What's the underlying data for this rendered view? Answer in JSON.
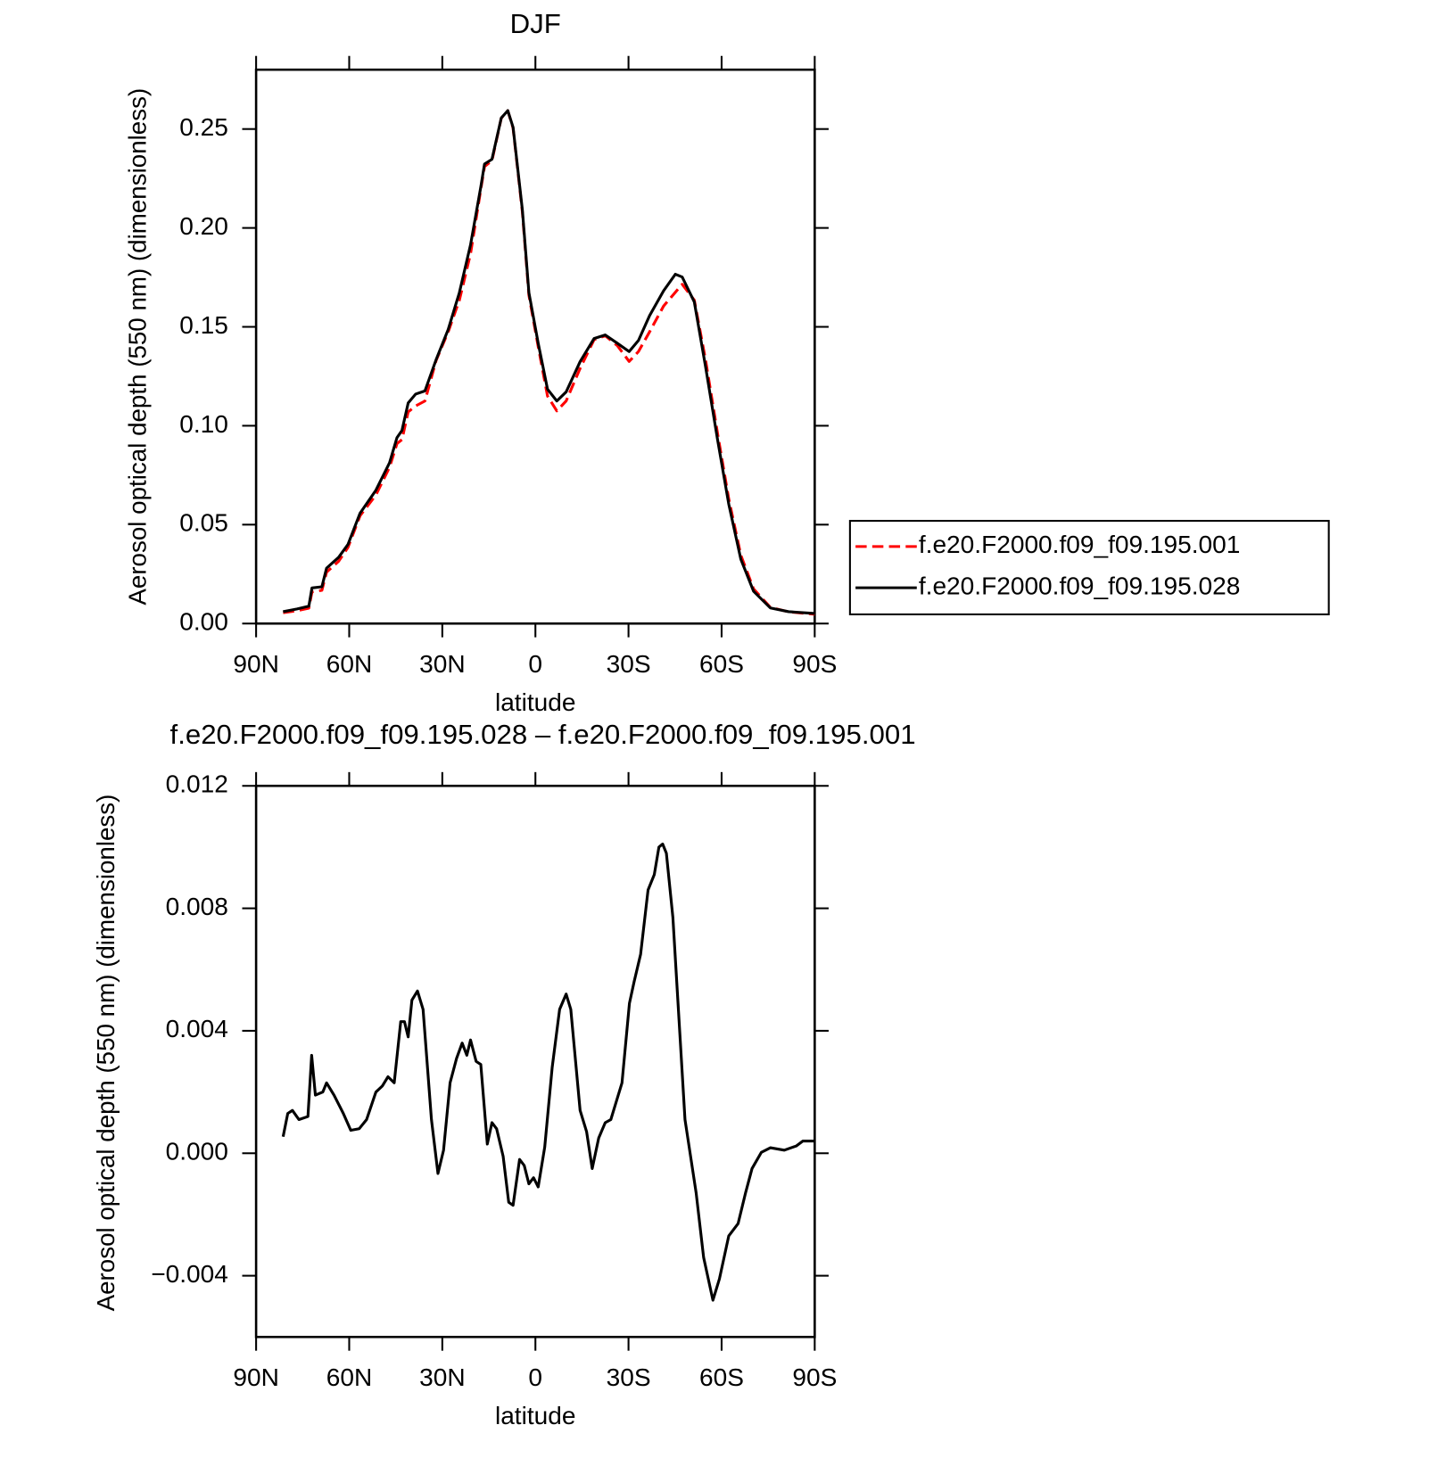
{
  "chart_data": [
    {
      "type": "line",
      "title": "DJF",
      "xlabel": "latitude",
      "ylabel": "Aerosol optical depth (550 nm) (dimensionless)",
      "xlim": [
        90,
        -90
      ],
      "ylim": [
        0,
        0.28
      ],
      "xticks": [
        {
          "value": 90,
          "label": "90N"
        },
        {
          "value": 60,
          "label": "60N"
        },
        {
          "value": 30,
          "label": "30N"
        },
        0,
        {
          "value": -30,
          "label": "30S"
        },
        {
          "value": -60,
          "label": "60S"
        },
        {
          "value": -90,
          "label": "90S"
        }
      ],
      "yticks": [
        {
          "value": 0,
          "label": "0.00"
        },
        0.05,
        {
          "value": 0.1,
          "label": "0.10"
        },
        0.15,
        {
          "value": 0.2,
          "label": "0.20"
        },
        0.25
      ],
      "legend": "right",
      "x": [
        81.3,
        76.8,
        73,
        72,
        68.8,
        67.3,
        63.4,
        60.4,
        56.5,
        51.4,
        47,
        44.6,
        43,
        41,
        38.6,
        35.6,
        32,
        28.1,
        24.5,
        20.9,
        17.6,
        16.4,
        14,
        11,
        8.9,
        7.2,
        4.2,
        2.1,
        -0.9,
        -3.9,
        -6.9,
        -9.9,
        -14.4,
        -18.9,
        -22.5,
        -26.4,
        -30.2,
        -33.2,
        -36.8,
        -41.3,
        -45.1,
        -47.3,
        -51.2,
        -54.8,
        -58.7,
        -62.3,
        -66.2,
        -70.3,
        -75.7,
        -81.6,
        -90
      ],
      "series": [
        {
          "name": "f.e20.F2000.f09_f09.195.001",
          "color": "#ff0000",
          "line_style": "dashed",
          "values": [
            0.0055,
            0.0065,
            0.0078,
            0.016,
            0.0168,
            0.026,
            0.0315,
            0.0385,
            0.0545,
            0.065,
            0.079,
            0.091,
            0.093,
            0.107,
            0.11,
            0.1125,
            0.133,
            0.1475,
            0.1635,
            0.187,
            0.2195,
            0.231,
            0.234,
            0.2555,
            0.2593,
            0.2505,
            0.208,
            0.166,
            0.14,
            0.115,
            0.1075,
            0.1125,
            0.129,
            0.1435,
            0.1455,
            0.1405,
            0.1325,
            0.1375,
            0.1475,
            0.1605,
            0.1675,
            0.1715,
            0.1635,
            0.1335,
            0.096,
            0.063,
            0.0345,
            0.0175,
            0.0082,
            0.0059,
            0.0047
          ]
        },
        {
          "name": "f.e20.F2000.f09_f09.195.028",
          "color": "#000000",
          "line_style": "solid",
          "values": [
            0.006,
            0.0074,
            0.0088,
            0.018,
            0.0186,
            0.028,
            0.0335,
            0.04,
            0.0558,
            0.0674,
            0.0813,
            0.094,
            0.0976,
            0.1115,
            0.116,
            0.1176,
            0.1334,
            0.1487,
            0.1673,
            0.1915,
            0.2207,
            0.2323,
            0.2347,
            0.2556,
            0.2593,
            0.2509,
            0.2091,
            0.1673,
            0.1417,
            0.1185,
            0.1125,
            0.1171,
            0.1324,
            0.1441,
            0.1459,
            0.1417,
            0.1375,
            0.1431,
            0.1557,
            0.1682,
            0.1766,
            0.1752,
            0.1626,
            0.1301,
            0.0929,
            0.0604,
            0.0325,
            0.0163,
            0.0079,
            0.006,
            0.0051
          ]
        }
      ]
    },
    {
      "type": "line",
      "title": "f.e20.F2000.f09_f09.195.028 – f.e20.F2000.f09_f09.195.001",
      "xlabel": "latitude",
      "ylabel": "Aerosol optical depth (550 nm) (dimensionless)",
      "xlim": [
        90,
        -90
      ],
      "ylim": [
        -0.006,
        0.012
      ],
      "xticks": [
        {
          "value": 90,
          "label": "90N"
        },
        {
          "value": 60,
          "label": "60N"
        },
        {
          "value": 30,
          "label": "30N"
        },
        0,
        {
          "value": -30,
          "label": "30S"
        },
        {
          "value": -60,
          "label": "60S"
        },
        {
          "value": -90,
          "label": "90S"
        }
      ],
      "yticks": [
        {
          "value": -0.004,
          "label": "−0.004"
        },
        {
          "value": 0,
          "label": "0.000"
        },
        0.004,
        0.008,
        0.012
      ],
      "color": "#000000",
      "x": [
        81.3,
        79.8,
        78.3,
        76.2,
        73.3,
        72.1,
        70.9,
        68.5,
        67.3,
        64.9,
        61.9,
        59.5,
        56.8,
        54.4,
        51.4,
        49.3,
        47.5,
        45.5,
        43.4,
        42.2,
        41,
        39.8,
        38,
        36.2,
        33.5,
        31.4,
        29.6,
        27.5,
        25.4,
        23.6,
        22.1,
        20.9,
        19.1,
        17.6,
        15.5,
        14,
        12.5,
        10.4,
        8.6,
        7.2,
        5.1,
        3.6,
        2.1,
        0.6,
        -0.9,
        -3,
        -5.4,
        -7.8,
        -9.9,
        -11.4,
        -14.4,
        -16.5,
        -18.3,
        -20.4,
        -22.5,
        -24.3,
        -25.8,
        -27.9,
        -30.3,
        -31.8,
        -33.9,
        -36.3,
        -38.3,
        -39.8,
        -41,
        -42.2,
        -44.3,
        -48.2,
        -51.8,
        -54.2,
        -55.7,
        -57.2,
        -59.3,
        -62.3,
        -65.3,
        -67.7,
        -69.8,
        -72.8,
        -75.7,
        -80.2,
        -84.1,
        -86.2,
        -90
      ],
      "values": [
        0.00054,
        0.0013,
        0.0014,
        0.0011,
        0.0012,
        0.0032,
        0.0019,
        0.002,
        0.0023,
        0.0019,
        0.0013,
        0.00075,
        0.0008,
        0.0011,
        0.002,
        0.0022,
        0.0025,
        0.0023,
        0.0043,
        0.0043,
        0.0038,
        0.005,
        0.0053,
        0.0047,
        0.0011,
        -0.00066,
        0.0001,
        0.0023,
        0.0031,
        0.0036,
        0.0032,
        0.0037,
        0.003,
        0.0029,
        0.0003,
        0.001,
        0.0008,
        -0.0001,
        -0.0016,
        -0.0017,
        -0.0002,
        -0.0004,
        -0.001,
        -0.0008,
        -0.0011,
        0.0002,
        0.0028,
        0.0047,
        0.0052,
        0.0047,
        0.0014,
        0.0007,
        -0.0005,
        0.0005,
        0.001,
        0.0011,
        0.0016,
        0.0023,
        0.0049,
        0.0056,
        0.0065,
        0.0086,
        0.0091,
        0.01,
        0.0101,
        0.0098,
        0.0077,
        0.0011,
        -0.0013,
        -0.0034,
        -0.0041,
        -0.0048,
        -0.0041,
        -0.0027,
        -0.0023,
        -0.0013,
        -0.0005,
        3e-05,
        0.00018,
        0.0001,
        0.00024,
        0.0004,
        0.0004
      ]
    }
  ]
}
